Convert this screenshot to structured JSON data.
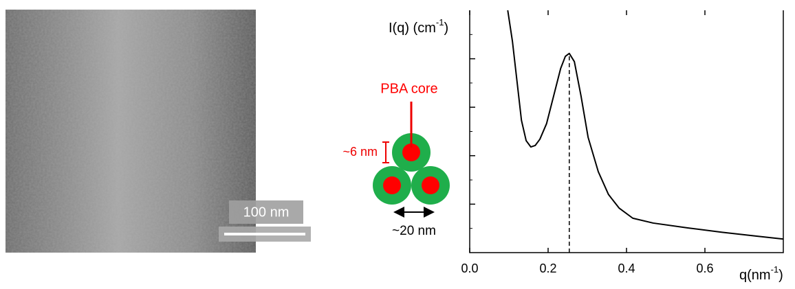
{
  "chart_data": {
    "type": "line",
    "y_label": {
      "text": "I(q) (cm",
      "sup": "-1",
      "end": ")"
    },
    "x_label": {
      "text": "q(nm",
      "sup": "-1",
      "end": ")"
    },
    "xlim": [
      0,
      0.8
    ],
    "xticks": [
      {
        "value": 0,
        "label": "0.0"
      },
      0.2,
      0.4,
      0.6
    ],
    "ylim": [
      0,
      5
    ],
    "yticks": [
      1,
      2,
      3,
      4
    ],
    "x": [
      0.097,
      0.109,
      0.121,
      0.132,
      0.144,
      0.156,
      0.167,
      0.179,
      0.196,
      0.214,
      0.232,
      0.244,
      0.254,
      0.267,
      0.284,
      0.302,
      0.328,
      0.354,
      0.381,
      0.416,
      0.468,
      0.556,
      0.644,
      0.732,
      0.8
    ],
    "series": [
      {
        "color": "#000000",
        "values": [
          5.0,
          4.36,
          3.51,
          2.73,
          2.31,
          2.18,
          2.21,
          2.34,
          2.66,
          3.23,
          3.8,
          4.05,
          4.11,
          3.94,
          3.23,
          2.38,
          1.67,
          1.2,
          0.92,
          0.71,
          0.61,
          0.51,
          0.42,
          0.34,
          0.28
        ]
      }
    ],
    "peak_q": 0.254
  },
  "image": {
    "scale_bar_label": "100 nm"
  },
  "schematic": {
    "core_label": "PBA core",
    "shell_label": "~6 nm",
    "size_label": "~20 nm"
  }
}
